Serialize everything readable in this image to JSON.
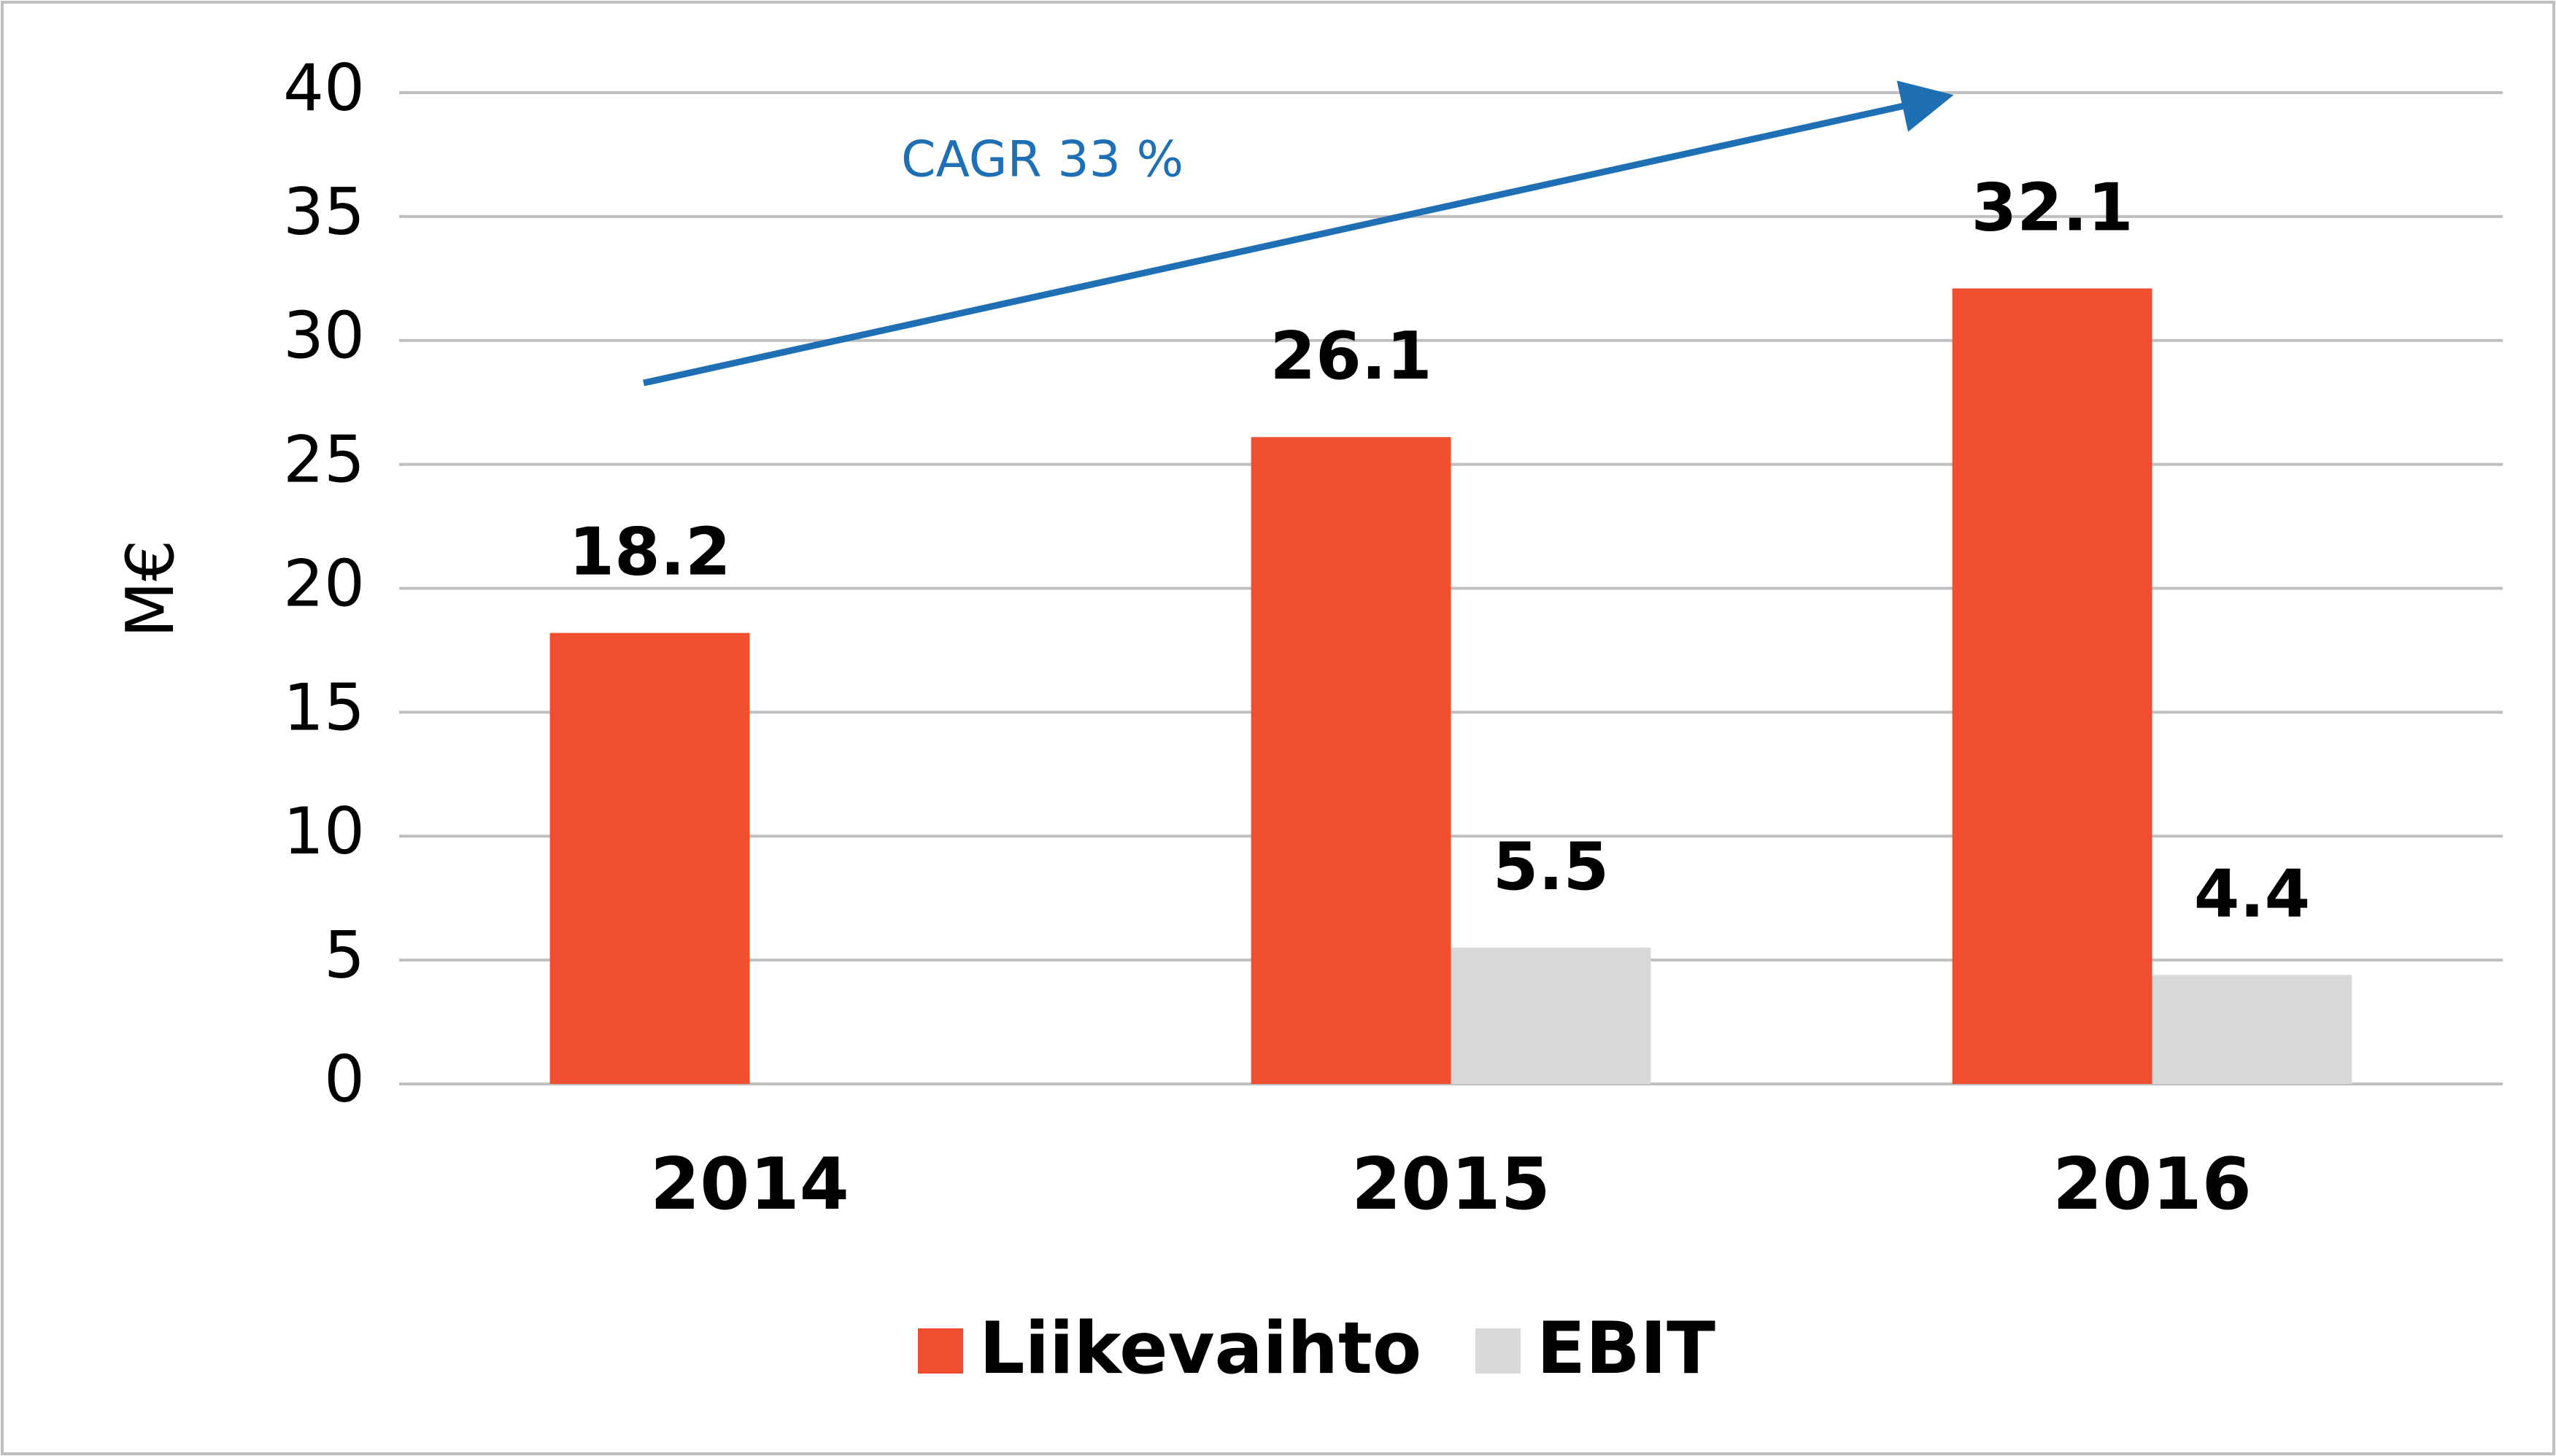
{
  "chart_data": {
    "type": "bar",
    "y_label": "M€",
    "annotation": "CAGR 33 %",
    "categories": [
      "2014",
      "2015",
      "2016"
    ],
    "series": [
      {
        "name": "Liikevaihto",
        "color": "#f04e30",
        "values": [
          18.2,
          26.1,
          32.1
        ]
      },
      {
        "name": "EBIT",
        "color": "#d9d9d9",
        "values": [
          null,
          5.5,
          4.4
        ]
      }
    ],
    "ylim": [
      0,
      40
    ],
    "yticks": [
      0,
      5,
      10,
      15,
      20,
      25,
      30,
      35,
      40
    ],
    "grid": true,
    "legend": "bottom"
  }
}
